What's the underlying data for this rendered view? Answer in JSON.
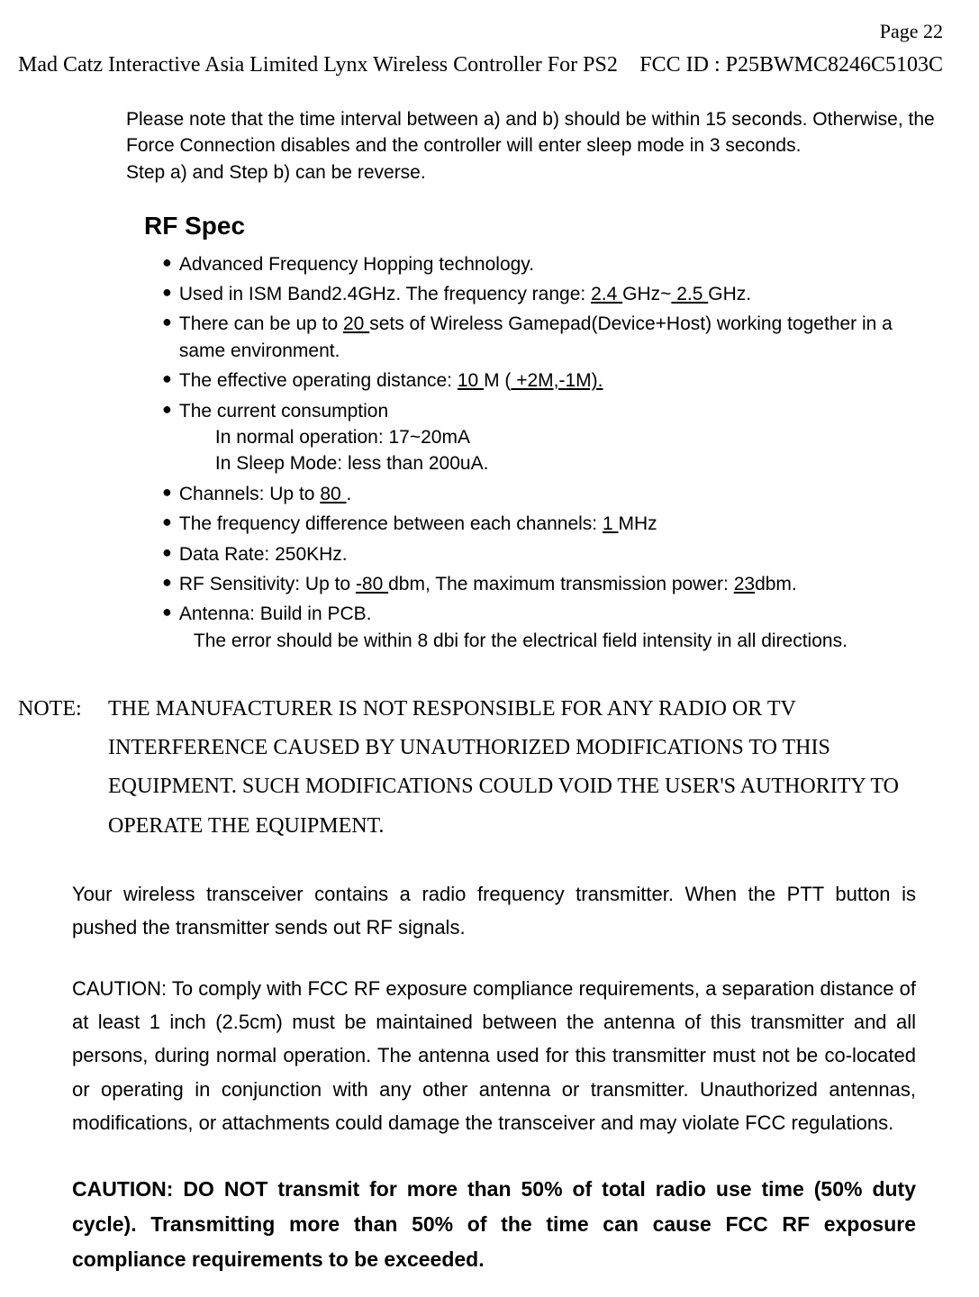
{
  "page_label": "Page 22",
  "header": {
    "left": "Mad Catz Interactive Asia Limited  Lynx Wireless Controller For PS2",
    "right": "FCC ID : P25BWMC8246C5103C"
  },
  "intro": {
    "line1": "Please note that the time interval between a) and b) should be within 15 seconds. Otherwise, the Force Connection disables and the controller will enter sleep mode in 3 seconds.",
    "line2": "Step a) and Step b) can be reverse."
  },
  "rf": {
    "heading": "RF Spec",
    "items": {
      "i1": "Advanced Frequency Hopping technology.",
      "i2_a": "Used in ISM Band2.4GHz. The frequency range: ",
      "i2_b": "  2.4  ",
      "i2_c": "GHz~",
      "i2_d": "  2.5  ",
      "i2_e": "GHz.",
      "i3_a": "There can be up to ",
      "i3_b": "  20  ",
      "i3_c": " sets of Wireless Gamepad(Device+Host) working together in a same environment.",
      "i4_a": "The effective operating distance: ",
      "i4_b": "    10    ",
      "i4_c": "M (",
      "i4_d": "  +2M,-1M).",
      "i5": "The current consumption",
      "i5_sub1": "In normal operation: 17~20mA",
      "i5_sub2": "In Sleep Mode: less than 200uA.",
      "i6_a": "Channels: Up to ",
      "i6_b": "   80     ",
      "i6_c": ".",
      "i7_a": "The frequency difference between each channels: ",
      "i7_b": "    1    ",
      "i7_c": "MHz",
      "i8": "Data Rate: 250KHz.",
      "i9_a": "RF Sensitivity: Up to ",
      "i9_b": "  -80  ",
      "i9_c": "dbm, The maximum transmission power: ",
      "i9_d": "23",
      "i9_e": "dbm.",
      "i10": "Antenna: Build in PCB.",
      "i10_sub": "The error should be within 8 dbi for the electrical field intensity in all directions."
    }
  },
  "note": {
    "label": "NOTE:",
    "text": "THE MANUFACTURER IS NOT RESPONSIBLE FOR ANY RADIO OR TV INTERFERENCE CAUSED BY UNAUTHORIZED MODIFICATIONS TO THIS EQUIPMENT.      SUCH MODIFICATIONS COULD VOID THE USER'S AUTHORITY TO OPERATE THE EQUIPMENT."
  },
  "para1": "Your wireless transceiver contains a radio frequency transmitter.  When the PTT button is pushed the transmitter sends out RF signals.",
  "para2": "CAUTION: To comply with FCC RF exposure compliance requirements, a separation distance of at least 1 inch (2.5cm) must be maintained between the antenna of this transmitter and all persons, during normal operation. The antenna used for this transmitter must not be co-located or operating in conjunction with any other antenna or transmitter. Unauthorized antennas, modifications, or attachments could damage the transceiver and may violate FCC regulations.",
  "para3": "CAUTION: DO NOT transmit for more than 50% of total radio use time (50% duty cycle). Transmitting more than 50% of the time can cause FCC RF exposure compliance requirements to be exceeded."
}
